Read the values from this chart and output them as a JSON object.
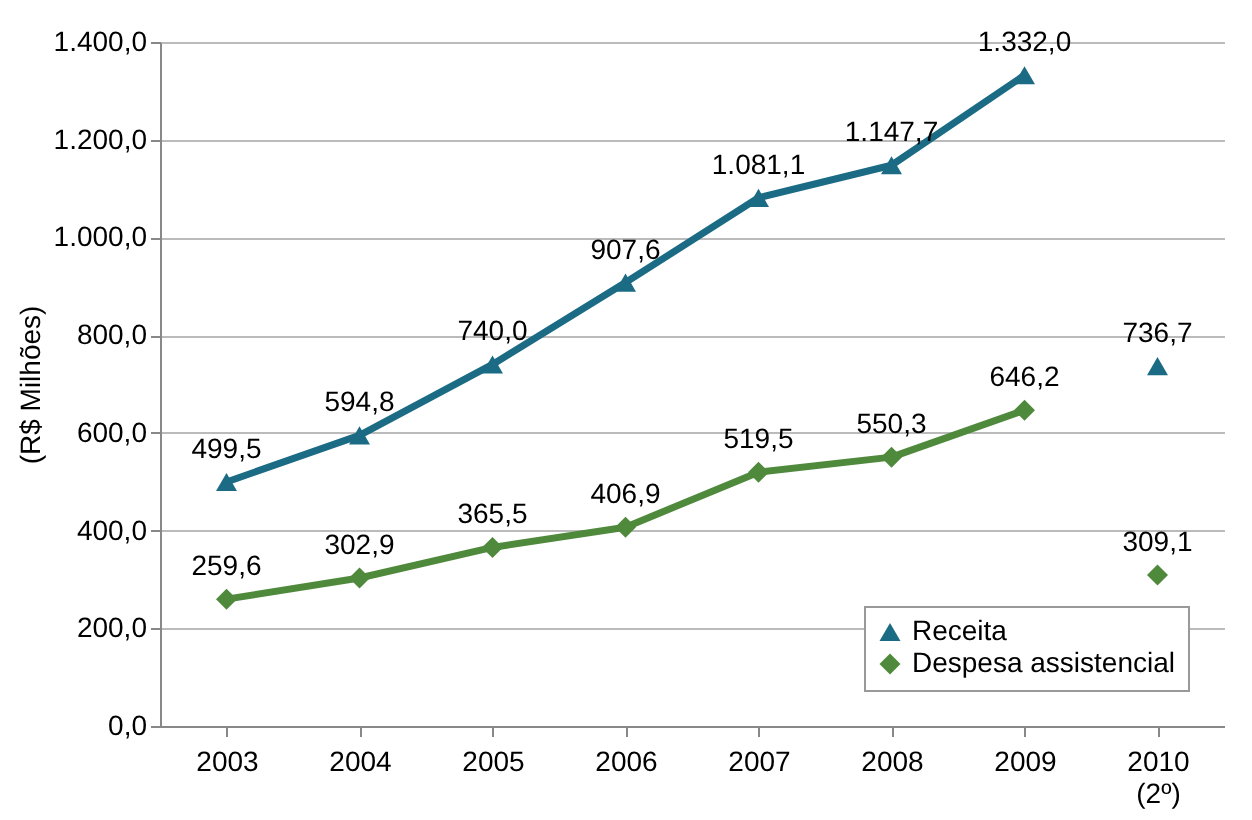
{
  "chart_data": {
    "type": "line",
    "ylabel": "(R$ Milhões)",
    "categories": [
      "2003",
      "2004",
      "2005",
      "2006",
      "2007",
      "2008",
      "2009",
      "2010\n(2º)"
    ],
    "series": [
      {
        "name": "Receita",
        "color": "#1b6b85",
        "marker": "triangle",
        "values": [
          499.5,
          594.8,
          740.0,
          907.6,
          1081.1,
          1147.7,
          1332.0,
          null
        ],
        "value_labels": [
          "499,5",
          "594,8",
          "740,0",
          "907,6",
          "1.081,1",
          "1.147,7",
          "1.332,0",
          null
        ]
      },
      {
        "name": "Despesa assistencial",
        "color": "#4f8a3c",
        "marker": "diamond",
        "values": [
          259.6,
          302.9,
          365.5,
          406.9,
          519.5,
          550.3,
          646.2,
          null
        ],
        "value_labels": [
          "259,6",
          "302,9",
          "365,5",
          "406,9",
          "519,5",
          "550,3",
          "646,2",
          null
        ]
      },
      {
        "type": "scatter",
        "color": "#1b6b85",
        "marker": "triangle",
        "x": [
          "2010\n(2º)"
        ],
        "values": [
          736.7
        ],
        "value_labels": [
          "736,7"
        ]
      },
      {
        "type": "scatter",
        "color": "#4f8a3c",
        "marker": "diamond",
        "x": [
          "2010\n(2º)"
        ],
        "values": [
          309.1
        ],
        "value_labels": [
          "309,1"
        ]
      }
    ],
    "ylim": [
      0,
      1400
    ],
    "yticks": [
      {
        "value": 0,
        "label": "0,0"
      },
      {
        "value": 200,
        "label": "200,0"
      },
      {
        "value": 400,
        "label": "400,0"
      },
      {
        "value": 600,
        "label": "600,0"
      },
      {
        "value": 800,
        "label": "800,0"
      },
      {
        "value": 1000,
        "label": "1.000,0"
      },
      {
        "value": 1200,
        "label": "1.200,0"
      },
      {
        "value": 1400,
        "label": "1.400,0"
      }
    ],
    "grid": "y",
    "legend": "bottom right"
  }
}
